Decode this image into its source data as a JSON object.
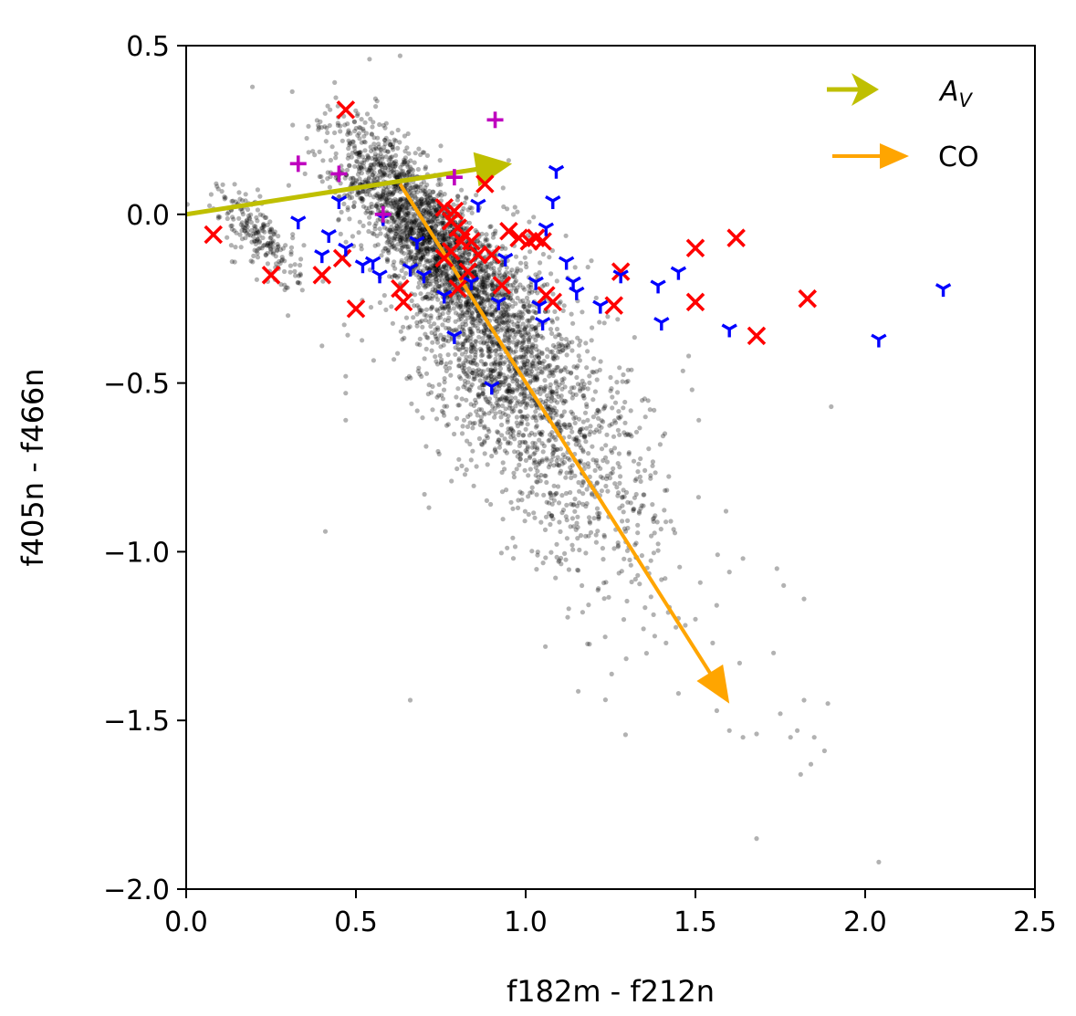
{
  "chart_data": {
    "type": "scatter",
    "xlabel": "f182m - f212n",
    "ylabel": "f405n - f466n",
    "xlim": [
      0.0,
      2.5
    ],
    "ylim": [
      -2.0,
      0.5
    ],
    "xticks": [
      "0.0",
      "0.5",
      "1.0",
      "1.5",
      "2.0",
      "2.5"
    ],
    "yticks": [
      "0.5",
      "0.0",
      "−0.5",
      "−1.0",
      "−1.5",
      "−2.0"
    ],
    "grid": false,
    "legend_position": "top-right",
    "legend": [
      {
        "label_main": "A",
        "label_sub": "V",
        "color": "#bfbf00",
        "marker": "arrow"
      },
      {
        "label_main": "CO",
        "label_sub": "",
        "color": "#ffa500",
        "marker": "arrow"
      }
    ],
    "arrows": [
      {
        "name": "A_V",
        "color": "#bfbf00",
        "from": [
          0.0,
          0.0
        ],
        "to": [
          0.96,
          0.15
        ]
      },
      {
        "name": "CO",
        "color": "#ffa500",
        "from": [
          0.63,
          0.09
        ],
        "to": [
          1.6,
          -1.45
        ]
      }
    ],
    "background_sources": {
      "color": "#000000",
      "opacity": 0.3,
      "clusters": [
        {
          "center": [
            0.72,
            -0.08
          ],
          "spread": [
            0.13,
            0.08
          ],
          "count": 1400
        },
        {
          "center": [
            0.92,
            -0.4
          ],
          "spread": [
            0.15,
            0.17
          ],
          "count": 1500
        },
        {
          "center": [
            1.12,
            -0.7
          ],
          "spread": [
            0.17,
            0.2
          ],
          "count": 600
        },
        {
          "center": [
            0.22,
            -0.07
          ],
          "spread": [
            0.06,
            0.05
          ],
          "count": 220
        },
        {
          "center": [
            0.62,
            0.1
          ],
          "spread": [
            0.1,
            0.07
          ],
          "count": 400
        }
      ],
      "outliers": [
        [
          0.54,
          0.46
        ],
        [
          0.63,
          0.47
        ],
        [
          0.95,
          0.16
        ],
        [
          0.35,
          0.12
        ],
        [
          1.2,
          -0.6
        ],
        [
          1.41,
          -0.65
        ],
        [
          1.49,
          -0.52
        ],
        [
          1.59,
          -0.88
        ],
        [
          1.64,
          -1.02
        ],
        [
          1.74,
          -1.05
        ],
        [
          1.76,
          -1.1
        ],
        [
          1.82,
          -1.14
        ],
        [
          1.9,
          -0.57
        ],
        [
          1.42,
          -1.18
        ],
        [
          1.5,
          -1.2
        ],
        [
          1.45,
          -1.42
        ],
        [
          1.63,
          -1.33
        ],
        [
          1.73,
          -1.3
        ],
        [
          1.75,
          -1.48
        ],
        [
          1.8,
          -1.53
        ],
        [
          1.85,
          -1.55
        ],
        [
          1.88,
          -1.59
        ],
        [
          1.89,
          -1.45
        ],
        [
          1.82,
          -1.44
        ],
        [
          1.81,
          -1.66
        ],
        [
          1.84,
          -1.63
        ],
        [
          1.6,
          -1.53
        ],
        [
          1.64,
          -1.55
        ],
        [
          1.68,
          -1.54
        ],
        [
          1.68,
          -1.85
        ],
        [
          2.04,
          -1.92
        ],
        [
          1.78,
          -1.55
        ],
        [
          0.41,
          -0.94
        ],
        [
          0.66,
          -1.44
        ],
        [
          0.47,
          -0.48
        ],
        [
          0.47,
          -0.53
        ],
        [
          0.47,
          -0.61
        ],
        [
          0.3,
          -0.3
        ],
        [
          0.4,
          -0.39
        ],
        [
          1.31,
          -1.04
        ],
        [
          1.33,
          -1.07
        ],
        [
          1.38,
          -1.25
        ],
        [
          1.51,
          -0.61
        ],
        [
          1.48,
          -0.42
        ],
        [
          1.6,
          -1.06
        ]
      ]
    },
    "series": [
      {
        "marker": "x",
        "color": "#ff0000",
        "points": [
          [
            0.08,
            -0.06
          ],
          [
            0.25,
            -0.18
          ],
          [
            0.4,
            -0.18
          ],
          [
            0.47,
            0.31
          ],
          [
            0.46,
            -0.13
          ],
          [
            0.5,
            -0.28
          ],
          [
            0.63,
            -0.22
          ],
          [
            0.64,
            -0.26
          ],
          [
            0.76,
            0.02
          ],
          [
            0.78,
            -0.02
          ],
          [
            0.79,
            0.01
          ],
          [
            0.8,
            -0.04
          ],
          [
            0.81,
            -0.08
          ],
          [
            0.82,
            -0.06
          ],
          [
            0.78,
            -0.11
          ],
          [
            0.76,
            -0.13
          ],
          [
            0.84,
            -0.08
          ],
          [
            0.86,
            -0.12
          ],
          [
            0.8,
            -0.22
          ],
          [
            0.83,
            -0.17
          ],
          [
            0.88,
            0.09
          ],
          [
            0.9,
            -0.12
          ],
          [
            0.93,
            -0.21
          ],
          [
            0.95,
            -0.05
          ],
          [
            0.98,
            -0.07
          ],
          [
            1.01,
            -0.08
          ],
          [
            1.03,
            -0.07
          ],
          [
            1.05,
            -0.08
          ],
          [
            1.06,
            -0.24
          ],
          [
            1.08,
            -0.26
          ],
          [
            1.26,
            -0.27
          ],
          [
            1.28,
            -0.17
          ],
          [
            1.5,
            -0.1
          ],
          [
            1.5,
            -0.26
          ],
          [
            1.62,
            -0.07
          ],
          [
            1.68,
            -0.36
          ],
          [
            1.83,
            -0.25
          ]
        ]
      },
      {
        "marker": "tri_down",
        "color": "#0000ff",
        "points": [
          [
            0.33,
            -0.02
          ],
          [
            0.4,
            -0.12
          ],
          [
            0.42,
            -0.06
          ],
          [
            0.45,
            0.04
          ],
          [
            0.47,
            -0.1
          ],
          [
            0.52,
            -0.15
          ],
          [
            0.55,
            -0.14
          ],
          [
            0.57,
            -0.18
          ],
          [
            0.58,
            -0.01
          ],
          [
            0.66,
            -0.16
          ],
          [
            0.68,
            -0.08
          ],
          [
            0.7,
            -0.18
          ],
          [
            0.76,
            -0.24
          ],
          [
            0.79,
            -0.36
          ],
          [
            0.84,
            -0.2
          ],
          [
            0.86,
            0.03
          ],
          [
            0.9,
            -0.51
          ],
          [
            0.92,
            -0.26
          ],
          [
            0.94,
            -0.13
          ],
          [
            1.03,
            -0.2
          ],
          [
            1.04,
            -0.27
          ],
          [
            1.05,
            -0.32
          ],
          [
            1.06,
            -0.04
          ],
          [
            1.08,
            0.04
          ],
          [
            1.09,
            0.13
          ],
          [
            1.12,
            -0.14
          ],
          [
            1.14,
            -0.2
          ],
          [
            1.15,
            -0.23
          ],
          [
            1.22,
            -0.27
          ],
          [
            1.28,
            -0.18
          ],
          [
            1.39,
            -0.21
          ],
          [
            1.4,
            -0.32
          ],
          [
            1.45,
            -0.17
          ],
          [
            1.6,
            -0.34
          ],
          [
            2.04,
            -0.37
          ],
          [
            2.23,
            -0.22
          ]
        ]
      },
      {
        "marker": "plus",
        "color": "#bf00bf",
        "points": [
          [
            0.33,
            0.15
          ],
          [
            0.45,
            0.12
          ],
          [
            0.58,
            0.0
          ],
          [
            0.79,
            0.11
          ],
          [
            0.91,
            0.28
          ]
        ]
      }
    ]
  }
}
